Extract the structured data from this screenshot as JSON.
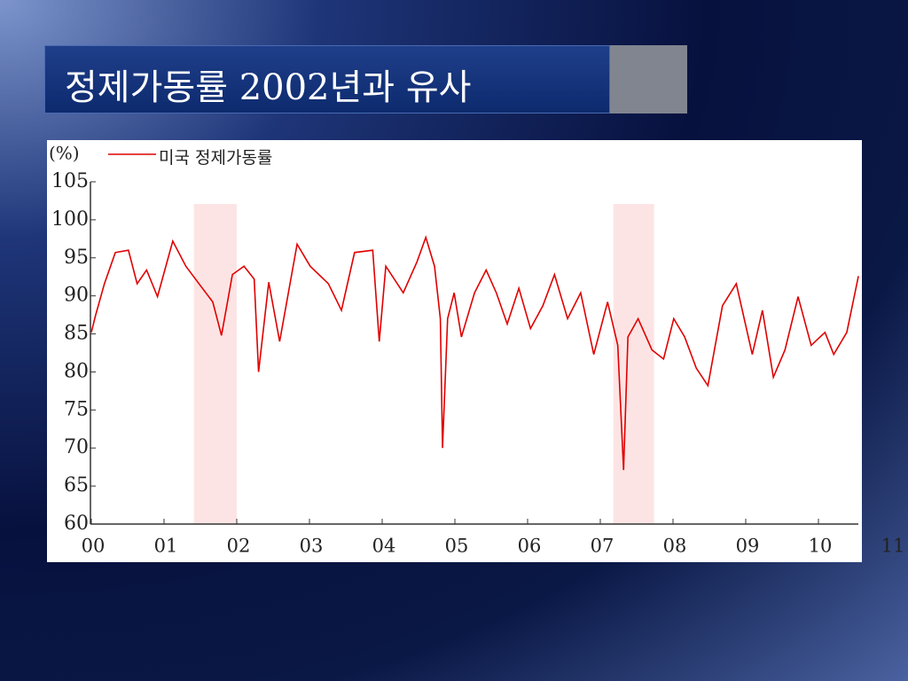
{
  "title": "정제가동률 2002년과 유사",
  "chart_data": {
    "type": "line",
    "y_unit_label": "(%)",
    "x": [
      2000.0,
      2000.06,
      2000.18,
      2000.33,
      2000.51,
      2000.63,
      2000.76,
      2000.91,
      2001.12,
      2001.3,
      2001.48,
      2001.67,
      2001.79,
      2001.94,
      2002.1,
      2002.24,
      2002.3,
      2002.44,
      2002.59,
      2002.83,
      2003.01,
      2003.26,
      2003.44,
      2003.62,
      2003.87,
      2003.96,
      2004.05,
      2004.29,
      2004.48,
      2004.6,
      2004.72,
      2004.8,
      2004.83,
      2004.9,
      2004.99,
      2005.09,
      2005.27,
      2005.43,
      2005.57,
      2005.72,
      2005.88,
      2006.04,
      2006.21,
      2006.37,
      2006.55,
      2006.73,
      2006.91,
      2007.1,
      2007.24,
      2007.32,
      2007.38,
      2007.52,
      2007.71,
      2007.87,
      2008.01,
      2008.16,
      2008.32,
      2008.48,
      2008.68,
      2008.87,
      2009.09,
      2009.23,
      2009.38,
      2009.54,
      2009.72,
      2009.9,
      2010.09,
      2010.21,
      2010.39,
      2010.55
    ],
    "series": [
      {
        "name": "미국 정제가동률",
        "color": "#e00000",
        "values": [
          85.2,
          87.5,
          91.6,
          95.7,
          96,
          91.6,
          93.4,
          89.9,
          97.2,
          93.9,
          91.6,
          89.2,
          84.8,
          92.8,
          93.9,
          92.2,
          80,
          91.8,
          84,
          96.8,
          93.9,
          91.6,
          88.1,
          95.7,
          96,
          84,
          93.9,
          90.4,
          94.5,
          97.7,
          93.9,
          87,
          70,
          87,
          90.4,
          84.6,
          90.4,
          93.4,
          90.4,
          86.3,
          91,
          85.7,
          88.7,
          92.8,
          87,
          90.4,
          82.3,
          89.2,
          83.5,
          67.1,
          84.6,
          87,
          82.9,
          81.7,
          87,
          84.6,
          80.5,
          78.2,
          88.7,
          91.6,
          82.3,
          88.1,
          79.3,
          82.9,
          89.9,
          83.5,
          85.2,
          82.3,
          85.2,
          92.6
        ]
      }
    ],
    "highlight_ranges": [
      [
        2001.41,
        2002.0
      ],
      [
        2007.18,
        2007.74
      ]
    ],
    "highlight_color": "#fde4e4",
    "xlim": [
      2000,
      2011
    ],
    "xticks": [
      {
        "value": 2000,
        "label": "00"
      },
      {
        "value": 2001,
        "label": "01"
      },
      {
        "value": 2002,
        "label": "02"
      },
      {
        "value": 2003,
        "label": "03"
      },
      {
        "value": 2004,
        "label": "04"
      },
      {
        "value": 2005,
        "label": "05"
      },
      {
        "value": 2006,
        "label": "06"
      },
      {
        "value": 2007,
        "label": "07"
      },
      {
        "value": 2008,
        "label": "08"
      },
      {
        "value": 2009,
        "label": "09"
      },
      {
        "value": 2010,
        "label": "10"
      },
      {
        "value": 2011,
        "label": "11"
      }
    ],
    "ylim": [
      60,
      105
    ],
    "yticks": [
      60,
      65,
      70,
      75,
      80,
      85,
      90,
      95,
      100,
      105
    ]
  }
}
